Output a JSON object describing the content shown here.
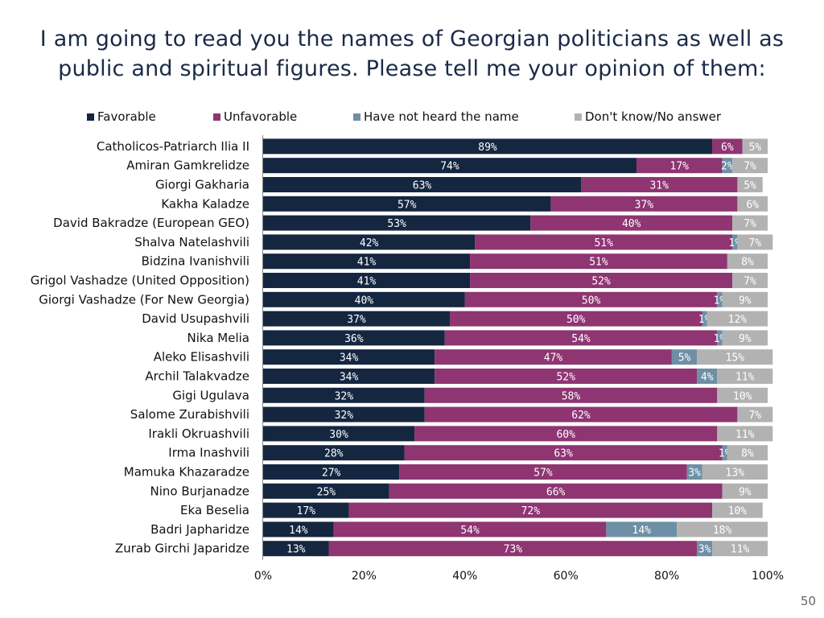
{
  "title_lines": [
    "I am going to read you the names of Georgian politicians as well as",
    "public and spiritual figures. Please tell me your opinion of them:"
  ],
  "page_number": "50",
  "colors": {
    "favorable": "#152640",
    "unfavorable": "#8e3572",
    "not_heard": "#6e8fa5",
    "dont_know": "#b2b2b2"
  },
  "chart_data": {
    "type": "bar",
    "orientation": "horizontal",
    "stacked": true,
    "xlim": [
      0,
      100
    ],
    "x_ticks": [
      "0%",
      "20%",
      "40%",
      "60%",
      "80%",
      "100%"
    ],
    "legend_position": "top",
    "categories": [
      "Catholicos-Patriarch Ilia II",
      "Amiran Gamkrelidze",
      "Giorgi Gakharia",
      "Kakha Kaladze",
      "David Bakradze (European GEO)",
      "Shalva Natelashvili",
      "Bidzina Ivanishvili",
      "Grigol Vashadze (United Opposition)",
      "Giorgi Vashadze (For New Georgia)",
      "David Usupashvili",
      "Nika Melia",
      "Aleko Elisashvili",
      "Archil Talakvadze",
      "Gigi Ugulava",
      "Salome Zurabishvili",
      "Irakli Okruashvili ",
      "Irma Inashvili",
      "Mamuka Khazaradze",
      "Nino Burjanadze",
      "Eka Beselia ",
      "Badri Japharidze ",
      "Zurab Girchi Japaridze"
    ],
    "series": [
      {
        "key": "favorable",
        "name": "Favorable",
        "values": [
          89,
          74,
          63,
          57,
          53,
          42,
          41,
          41,
          40,
          37,
          36,
          34,
          34,
          32,
          32,
          30,
          28,
          27,
          25,
          17,
          14,
          13
        ],
        "labels": [
          "89%",
          "74%",
          "63%",
          "57%",
          "53%",
          "42%",
          "41%",
          "41%",
          "40%",
          "37%",
          "36%",
          "34%",
          "34%",
          "32%",
          "32%",
          "30%",
          "28%",
          "27%",
          "25%",
          "17%",
          "14%",
          "13%"
        ]
      },
      {
        "key": "unfavorable",
        "name": "Unfavorable",
        "values": [
          6,
          17,
          31,
          37,
          40,
          51,
          51,
          52,
          50,
          50,
          54,
          47,
          52,
          58,
          62,
          60,
          63,
          57,
          66,
          72,
          54,
          73
        ],
        "labels": [
          "6%",
          "17%",
          "31%",
          "37%",
          "40%",
          "51%",
          "51%",
          "52%",
          "50%",
          "50%",
          "54%",
          "47%",
          "52%",
          "58%",
          "62%",
          "60%",
          "63%",
          "57%",
          "66%",
          "72%",
          "54%",
          "73%"
        ]
      },
      {
        "key": "not_heard",
        "name": "Have not heard the name",
        "values": [
          0,
          2,
          0,
          0,
          0,
          1,
          0,
          0,
          1,
          1,
          1,
          5,
          4,
          0,
          0,
          0,
          1,
          3,
          0,
          0,
          14,
          3
        ],
        "labels": [
          "",
          "2%",
          "",
          "",
          "",
          "1%",
          "",
          "",
          "1%",
          "1%",
          "1%",
          "5%",
          "4%",
          "",
          "",
          "",
          "1%",
          "3%",
          "",
          "",
          "14%",
          "3%"
        ]
      },
      {
        "key": "dont_know",
        "name": "Don't know/No answer",
        "values": [
          5,
          7,
          5,
          6,
          7,
          7,
          8,
          7,
          9,
          12,
          9,
          15,
          11,
          10,
          7,
          11,
          8,
          13,
          9,
          10,
          18,
          11
        ],
        "labels": [
          "5%",
          "7%",
          "5%",
          "6%",
          "7%",
          "7%",
          "8%",
          "7%",
          "9%",
          "12%",
          "9%",
          "15%",
          "11%",
          "10%",
          "7%",
          "11%",
          "8%",
          "13%",
          "9%",
          "10%",
          "18%",
          "11%"
        ]
      }
    ]
  }
}
